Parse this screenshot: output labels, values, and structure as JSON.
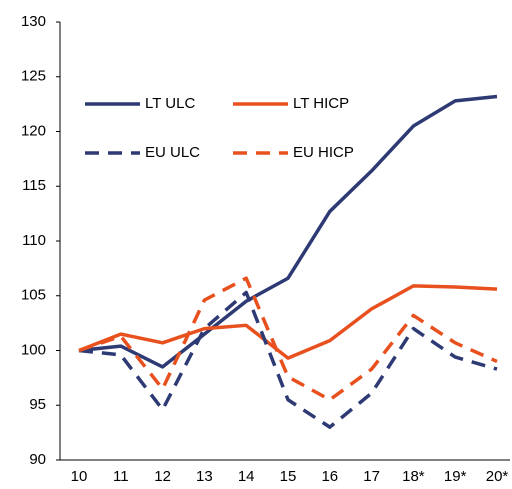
{
  "chart_data": {
    "type": "line",
    "categories": [
      "10",
      "11",
      "12",
      "13",
      "14",
      "15",
      "16",
      "17",
      "18*",
      "19*",
      "20*"
    ],
    "series": [
      {
        "name": "LT ULC",
        "color": "#2e3a74",
        "dashed": false,
        "values": [
          100,
          100.4,
          98.5,
          101.5,
          104.5,
          106.6,
          112.7,
          116.4,
          120.5,
          122.8,
          123.2
        ]
      },
      {
        "name": "LT HICP",
        "color": "#e8501e",
        "dashed": false,
        "values": [
          100,
          101.5,
          100.7,
          102.0,
          102.3,
          99.3,
          100.9,
          103.8,
          105.9,
          105.8,
          105.6
        ]
      },
      {
        "name": "EU ULC",
        "color": "#2e3a74",
        "dashed": true,
        "values": [
          100,
          99.6,
          94.6,
          102.0,
          105.3,
          95.5,
          93.0,
          96.1,
          102.0,
          99.4,
          98.3
        ]
      },
      {
        "name": "EU HICP",
        "color": "#e8501e",
        "dashed": true,
        "values": [
          100,
          101.3,
          96.5,
          104.6,
          106.6,
          97.6,
          95.5,
          98.3,
          103.2,
          100.7,
          99.0
        ]
      }
    ],
    "ylim": [
      90,
      130
    ],
    "yticks": [
      90,
      95,
      100,
      105,
      110,
      115,
      120,
      125,
      130
    ],
    "grid": false
  }
}
